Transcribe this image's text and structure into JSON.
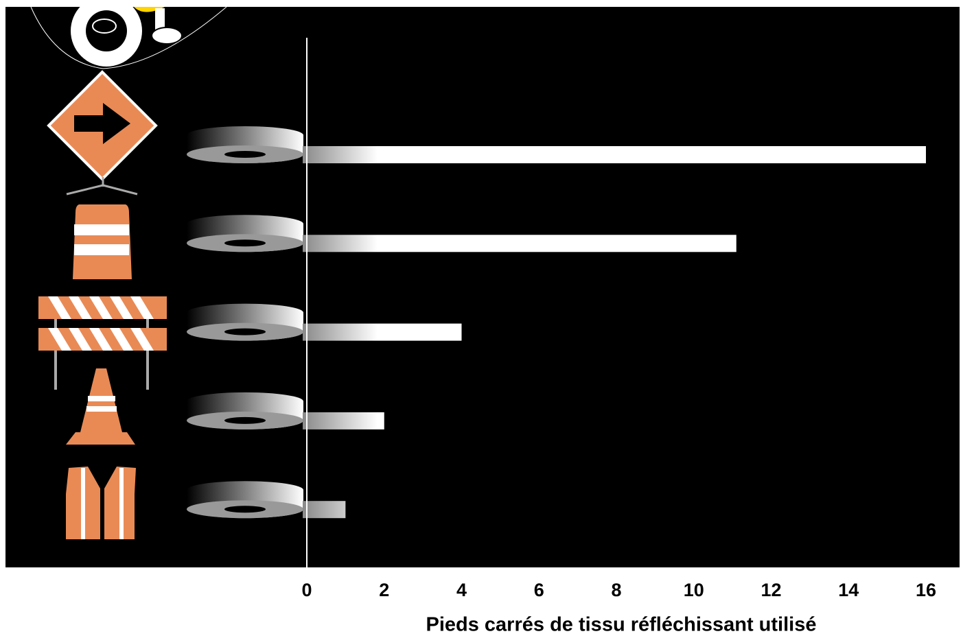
{
  "chart_data": {
    "type": "bar",
    "orientation": "horizontal",
    "xlabel": "Pieds carrés de tissu réfléchissant utilisé",
    "categories": [
      null,
      null,
      null,
      null,
      null
    ],
    "values": [
      16,
      11.1,
      4,
      2,
      1
    ],
    "color": "#ffffff",
    "xlim": [
      0,
      16
    ],
    "xticks": [
      0,
      2,
      4,
      6,
      8,
      10,
      12,
      14,
      16
    ]
  }
}
